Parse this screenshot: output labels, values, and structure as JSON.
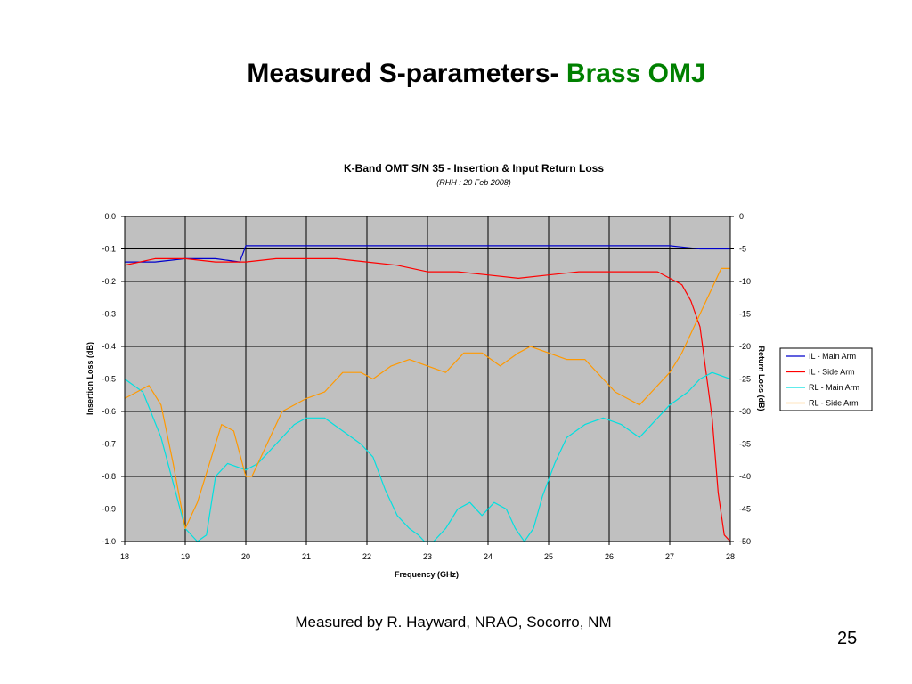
{
  "slide": {
    "title_main": "Measured S-parameters-",
    "title_accent": "Brass OMJ",
    "title_accent_color": "#008000",
    "footer": "Measured by R. Hayward, NRAO, Socorro, NM",
    "page_number": "25"
  },
  "chart_data": {
    "type": "line",
    "title": "K-Band OMT S/N 35 - Insertion & Input Return Loss",
    "subtitle": "(RHH : 20 Feb 2008)",
    "xlabel": "Frequency (GHz)",
    "ylabel_left": "Insertion Loss (dB)",
    "ylabel_right": "Return Loss (dB)",
    "xlim": [
      18,
      28
    ],
    "ylim_left": [
      -1.0,
      0.0
    ],
    "ylim_right": [
      -50,
      0
    ],
    "x_ticks": [
      "18",
      "19",
      "20",
      "21",
      "22",
      "23",
      "24",
      "25",
      "26",
      "27",
      "28"
    ],
    "y_left_ticks": [
      "0.0",
      "-0.1",
      "-0.2",
      "-0.3",
      "-0.4",
      "-0.5",
      "-0.6",
      "-0.7",
      "-0.8",
      "-0.9",
      "-1.0"
    ],
    "y_right_ticks": [
      "0",
      "-5",
      "-10",
      "-15",
      "-20",
      "-25",
      "-30",
      "-35",
      "-40",
      "-45",
      "-50"
    ],
    "grid": true,
    "plot_background": "#c0c0c0",
    "legend_position": "right",
    "series": [
      {
        "name": "IL - Main Arm",
        "axis": "left",
        "color": "#0000cc",
        "x": [
          18.0,
          18.5,
          19.0,
          19.5,
          19.9,
          20.0,
          20.5,
          21.0,
          21.5,
          22.0,
          22.5,
          23.0,
          23.5,
          24.0,
          24.5,
          25.0,
          25.5,
          26.0,
          26.5,
          27.0,
          27.5,
          28.0
        ],
        "y": [
          -0.14,
          -0.14,
          -0.13,
          -0.13,
          -0.14,
          -0.09,
          -0.09,
          -0.09,
          -0.09,
          -0.09,
          -0.09,
          -0.09,
          -0.09,
          -0.09,
          -0.09,
          -0.09,
          -0.09,
          -0.09,
          -0.09,
          -0.09,
          -0.1,
          -0.1
        ]
      },
      {
        "name": "IL - Side Arm",
        "axis": "left",
        "color": "#ff0000",
        "x": [
          18.0,
          18.5,
          19.0,
          19.5,
          20.0,
          20.5,
          21.0,
          21.5,
          22.0,
          22.5,
          23.0,
          23.5,
          24.0,
          24.5,
          25.0,
          25.5,
          26.0,
          26.5,
          26.8,
          27.0,
          27.2,
          27.35,
          27.5,
          27.6,
          27.7,
          27.8,
          27.9,
          28.0
        ],
        "y": [
          -0.15,
          -0.13,
          -0.13,
          -0.14,
          -0.14,
          -0.13,
          -0.13,
          -0.13,
          -0.14,
          -0.15,
          -0.17,
          -0.17,
          -0.18,
          -0.19,
          -0.18,
          -0.17,
          -0.17,
          -0.17,
          -0.17,
          -0.19,
          -0.21,
          -0.26,
          -0.34,
          -0.48,
          -0.62,
          -0.85,
          -0.98,
          -1.0
        ]
      },
      {
        "name": "RL - Main Arm",
        "axis": "right",
        "color": "#00e0e0",
        "x": [
          18.0,
          18.3,
          18.6,
          18.8,
          19.0,
          19.2,
          19.35,
          19.5,
          19.7,
          20.0,
          20.2,
          20.5,
          20.8,
          21.0,
          21.3,
          21.6,
          21.9,
          22.1,
          22.3,
          22.5,
          22.7,
          22.85,
          22.95,
          23.1,
          23.3,
          23.5,
          23.7,
          23.9,
          24.1,
          24.3,
          24.45,
          24.6,
          24.75,
          24.9,
          25.1,
          25.3,
          25.6,
          25.9,
          26.2,
          26.5,
          26.8,
          27.0,
          27.3,
          27.5,
          27.7,
          28.0
        ],
        "y": [
          -25,
          -27,
          -34,
          -41,
          -48,
          -50,
          -49,
          -40,
          -38,
          -39,
          -38,
          -35,
          -32,
          -31,
          -31,
          -33,
          -35,
          -37,
          -42,
          -46,
          -48,
          -49,
          -50,
          -50,
          -48,
          -45,
          -44,
          -46,
          -44,
          -45,
          -48,
          -50,
          -48,
          -43,
          -38,
          -34,
          -32,
          -31,
          -32,
          -34,
          -31,
          -29,
          -27,
          -25,
          -24,
          -25
        ]
      },
      {
        "name": "RL - Side Arm",
        "axis": "right",
        "color": "#ff9900",
        "x": [
          18.0,
          18.2,
          18.4,
          18.6,
          18.8,
          19.0,
          19.2,
          19.4,
          19.6,
          19.8,
          20.0,
          20.1,
          20.3,
          20.6,
          21.0,
          21.3,
          21.6,
          21.9,
          22.1,
          22.4,
          22.7,
          23.0,
          23.3,
          23.6,
          23.9,
          24.2,
          24.5,
          24.7,
          25.0,
          25.3,
          25.6,
          25.9,
          26.1,
          26.3,
          26.5,
          26.7,
          27.0,
          27.2,
          27.4,
          27.6,
          27.75,
          27.85,
          28.0
        ],
        "y": [
          -28,
          -27,
          -26,
          -29,
          -38,
          -48,
          -44,
          -38,
          -32,
          -33,
          -40,
          -40,
          -36,
          -30,
          -28,
          -27,
          -24,
          -24,
          -25,
          -23,
          -22,
          -23,
          -24,
          -21,
          -21,
          -23,
          -21,
          -20,
          -21,
          -22,
          -22,
          -25,
          -27,
          -28,
          -29,
          -27,
          -24,
          -21,
          -17,
          -13,
          -10,
          -8,
          -8
        ]
      }
    ]
  }
}
